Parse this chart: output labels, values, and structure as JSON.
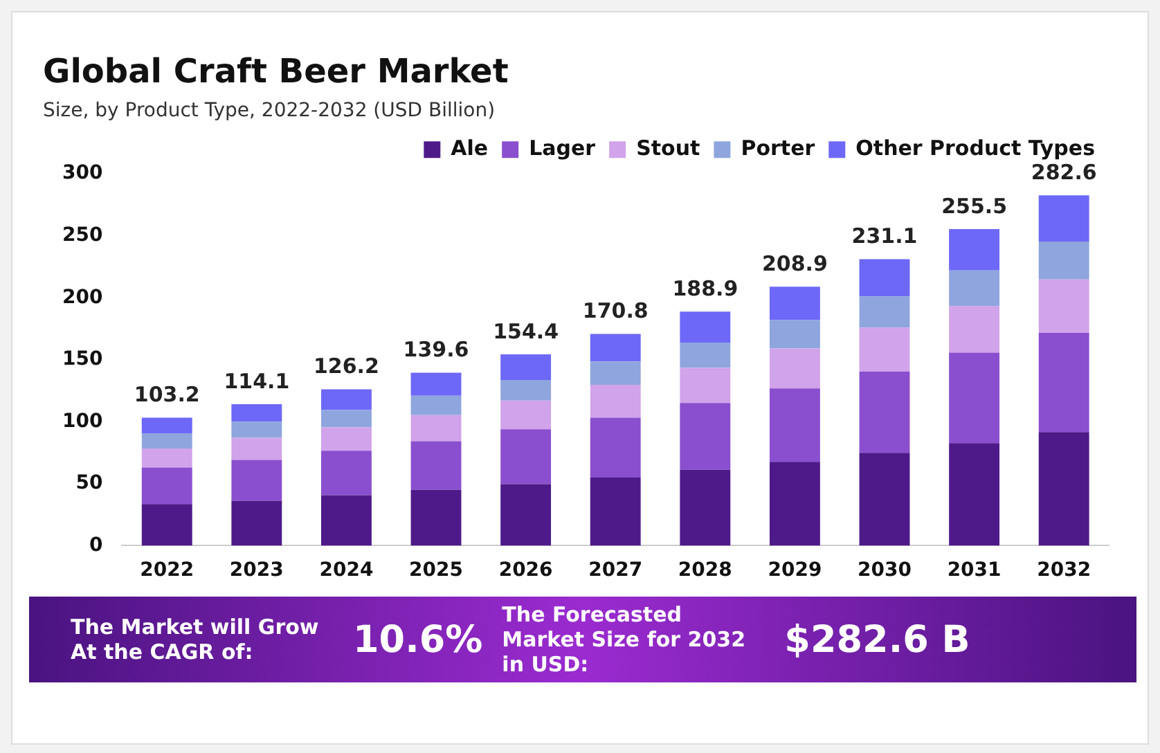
{
  "chart_data": {
    "type": "bar",
    "stacked": true,
    "title": "Global Craft Beer Market",
    "subtitle": "Size, by Product Type, 2022-2032 (USD Billion)",
    "categories": [
      "2022",
      "2023",
      "2024",
      "2025",
      "2026",
      "2027",
      "2028",
      "2029",
      "2030",
      "2031",
      "2032"
    ],
    "series": [
      {
        "name": "Ale",
        "color": "#4e1a8a",
        "values": [
          33.6,
          36.3,
          40.7,
          45.1,
          49.7,
          54.9,
          61.2,
          67.7,
          74.9,
          82.8,
          91.7
        ]
      },
      {
        "name": "Lager",
        "color": "#8a4fcf",
        "values": [
          29.5,
          32.9,
          35.9,
          39.2,
          44.2,
          48.3,
          53.9,
          59.2,
          65.7,
          72.9,
          80.0
        ]
      },
      {
        "name": "Stout",
        "color": "#d1a3ea",
        "values": [
          15.3,
          17.8,
          18.8,
          21.1,
          23.2,
          26.6,
          28.4,
          32.2,
          35.4,
          37.6,
          43.1
        ]
      },
      {
        "name": "Porter",
        "color": "#8fa5de",
        "values": [
          12.3,
          13.0,
          14.1,
          15.6,
          16.6,
          18.8,
          20.3,
          22.9,
          25.1,
          28.7,
          30.6
        ]
      },
      {
        "name": "Other Product Types",
        "color": "#6d68f7",
        "values": [
          12.5,
          14.1,
          16.7,
          18.6,
          20.7,
          22.2,
          25.1,
          26.9,
          30.0,
          33.5,
          37.2
        ]
      }
    ],
    "totals": [
      "103.2",
      "114.1",
      "126.2",
      "139.6",
      "154.4",
      "170.8",
      "188.9",
      "208.9",
      "231.1",
      "255.5",
      "282.6"
    ],
    "ylim": [
      0,
      300
    ],
    "yticks": [
      0,
      50,
      100,
      150,
      200,
      250,
      300
    ],
    "grid": false,
    "legend": "top right",
    "annotations": [
      "The Market will Grow At the CAGR of:",
      "10.6%",
      "The Forecasted Market Size for 2032 in USD:",
      "$282.6 B"
    ]
  }
}
